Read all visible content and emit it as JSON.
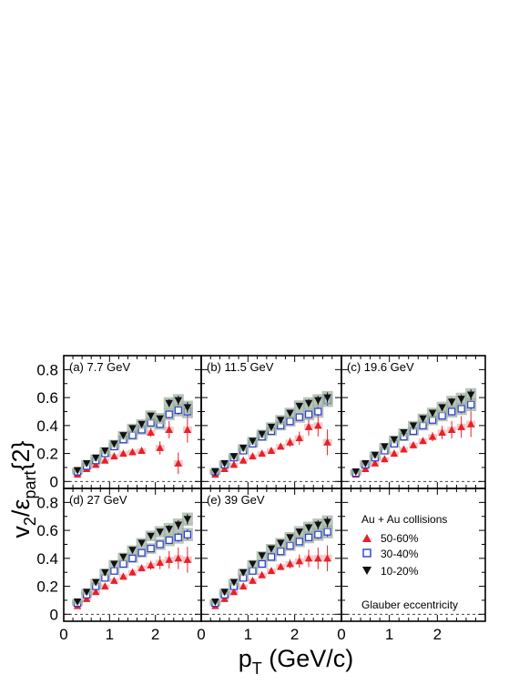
{
  "colors": {
    "50-60%": "#e8202a",
    "30-40%": "#2a3bd0",
    "10-20%": "#111111",
    "syst_band": "#9fb1a3"
  },
  "ylabel": {
    "v": "v",
    "v_sub": "2",
    "slash": "/",
    "eps": "ε",
    "eps_sub": "part",
    "braces": "{2}"
  },
  "xlabel": {
    "p": "p",
    "p_sub": "T",
    "rest": " (GeV/c)"
  },
  "legend": {
    "title": "Au + Au collisions",
    "items": [
      {
        "label": "50-60%",
        "marker": "triangle-up",
        "color_key": "50-60%"
      },
      {
        "label": "30-40%",
        "marker": "open-square",
        "color_key": "30-40%"
      },
      {
        "label": "10-20%",
        "marker": "triangle-down",
        "color_key": "10-20%"
      }
    ],
    "note": "Glauber eccentricity"
  },
  "chart_data": [
    {
      "type": "scatter",
      "label": "(a) 7.7 GeV",
      "xlim": [
        0,
        3.0
      ],
      "ylim": [
        -0.05,
        0.9
      ],
      "yticks": [
        "0",
        "0.2",
        "0.4",
        "0.6",
        "0.8"
      ],
      "xticks": [
        "0",
        "1",
        "2"
      ],
      "series": [
        {
          "name": "10-20%",
          "x": [
            0.3,
            0.5,
            0.7,
            0.9,
            1.1,
            1.3,
            1.5,
            1.7,
            1.9,
            2.1,
            2.3,
            2.5,
            2.7
          ],
          "y": [
            0.08,
            0.13,
            0.17,
            0.22,
            0.27,
            0.33,
            0.38,
            0.41,
            0.47,
            0.45,
            0.56,
            0.58,
            0.53
          ]
        },
        {
          "name": "30-40%",
          "x": [
            0.3,
            0.5,
            0.7,
            0.9,
            1.1,
            1.3,
            1.5,
            1.7,
            1.9,
            2.1,
            2.3,
            2.5,
            2.7
          ],
          "y": [
            0.07,
            0.11,
            0.15,
            0.2,
            0.25,
            0.3,
            0.33,
            0.37,
            0.42,
            0.41,
            0.48,
            0.51,
            0.5
          ]
        },
        {
          "name": "50-60%",
          "x": [
            0.3,
            0.5,
            0.7,
            0.9,
            1.1,
            1.3,
            1.5,
            1.7,
            1.9,
            2.1,
            2.3,
            2.5,
            2.7
          ],
          "y": [
            0.05,
            0.09,
            0.12,
            0.15,
            0.18,
            0.2,
            0.21,
            0.22,
            0.35,
            0.24,
            0.37,
            0.13,
            0.37
          ]
        }
      ]
    },
    {
      "type": "scatter",
      "label": "(b) 11.5 GeV",
      "xlim": [
        0,
        3.0
      ],
      "ylim": [
        -0.05,
        0.9
      ],
      "series": [
        {
          "name": "10-20%",
          "x": [
            0.3,
            0.5,
            0.7,
            0.9,
            1.1,
            1.3,
            1.5,
            1.7,
            1.9,
            2.1,
            2.3,
            2.5,
            2.7
          ],
          "y": [
            0.07,
            0.13,
            0.18,
            0.24,
            0.29,
            0.34,
            0.39,
            0.44,
            0.49,
            0.54,
            0.56,
            0.58,
            0.6
          ]
        },
        {
          "name": "30-40%",
          "x": [
            0.3,
            0.5,
            0.7,
            0.9,
            1.1,
            1.3,
            1.5,
            1.7,
            1.9,
            2.1,
            2.3,
            2.5,
            2.7
          ],
          "y": [
            0.07,
            0.12,
            0.17,
            0.22,
            0.27,
            0.32,
            0.36,
            0.4,
            0.43,
            0.46,
            0.48,
            0.5,
            0.58
          ]
        },
        {
          "name": "50-60%",
          "x": [
            0.3,
            0.5,
            0.7,
            0.9,
            1.1,
            1.3,
            1.5,
            1.7,
            1.9,
            2.1,
            2.3,
            2.5,
            2.7
          ],
          "y": [
            0.05,
            0.09,
            0.12,
            0.15,
            0.18,
            0.2,
            0.22,
            0.25,
            0.28,
            0.31,
            0.39,
            0.4,
            0.28
          ]
        }
      ]
    },
    {
      "type": "scatter",
      "label": "(c) 19.6 GeV",
      "xlim": [
        0,
        3.0
      ],
      "ylim": [
        -0.05,
        0.9
      ],
      "series": [
        {
          "name": "10-20%",
          "x": [
            0.3,
            0.5,
            0.7,
            0.9,
            1.1,
            1.3,
            1.5,
            1.7,
            1.9,
            2.1,
            2.3,
            2.5,
            2.7
          ],
          "y": [
            0.07,
            0.13,
            0.19,
            0.25,
            0.3,
            0.35,
            0.4,
            0.45,
            0.49,
            0.53,
            0.57,
            0.59,
            0.62
          ]
        },
        {
          "name": "30-40%",
          "x": [
            0.3,
            0.5,
            0.7,
            0.9,
            1.1,
            1.3,
            1.5,
            1.7,
            1.9,
            2.1,
            2.3,
            2.5,
            2.7
          ],
          "y": [
            0.06,
            0.12,
            0.17,
            0.22,
            0.27,
            0.32,
            0.36,
            0.4,
            0.44,
            0.47,
            0.5,
            0.52,
            0.55
          ]
        },
        {
          "name": "50-60%",
          "x": [
            0.3,
            0.5,
            0.7,
            0.9,
            1.1,
            1.3,
            1.5,
            1.7,
            1.9,
            2.1,
            2.3,
            2.5,
            2.7
          ],
          "y": [
            0.05,
            0.09,
            0.13,
            0.16,
            0.2,
            0.23,
            0.26,
            0.29,
            0.32,
            0.35,
            0.37,
            0.39,
            0.41
          ]
        }
      ]
    },
    {
      "type": "scatter",
      "label": "(d) 27 GeV",
      "xlim": [
        0,
        3.0
      ],
      "ylim": [
        -0.05,
        0.9
      ],
      "yticks": [
        "0",
        "0.2",
        "0.4",
        "0.6",
        "0.8"
      ],
      "xticks": [
        "0",
        "1",
        "2"
      ],
      "series": [
        {
          "name": "10-20%",
          "x": [
            0.3,
            0.5,
            0.7,
            0.9,
            1.1,
            1.3,
            1.5,
            1.7,
            1.9,
            2.1,
            2.3,
            2.5,
            2.7
          ],
          "y": [
            0.09,
            0.16,
            0.23,
            0.3,
            0.36,
            0.41,
            0.46,
            0.51,
            0.56,
            0.59,
            0.61,
            0.64,
            0.68
          ]
        },
        {
          "name": "30-40%",
          "x": [
            0.3,
            0.5,
            0.7,
            0.9,
            1.1,
            1.3,
            1.5,
            1.7,
            1.9,
            2.1,
            2.3,
            2.5,
            2.7
          ],
          "y": [
            0.08,
            0.14,
            0.2,
            0.26,
            0.31,
            0.36,
            0.4,
            0.44,
            0.47,
            0.5,
            0.53,
            0.55,
            0.57
          ]
        },
        {
          "name": "50-60%",
          "x": [
            0.3,
            0.5,
            0.7,
            0.9,
            1.1,
            1.3,
            1.5,
            1.7,
            1.9,
            2.1,
            2.3,
            2.5,
            2.7
          ],
          "y": [
            0.06,
            0.11,
            0.16,
            0.2,
            0.24,
            0.27,
            0.3,
            0.33,
            0.35,
            0.37,
            0.39,
            0.4,
            0.39
          ]
        }
      ]
    },
    {
      "type": "scatter",
      "label": "(e) 39 GeV",
      "xlim": [
        0,
        3.0
      ],
      "ylim": [
        -0.05,
        0.9
      ],
      "xticks": [
        "0",
        "1",
        "2"
      ],
      "series": [
        {
          "name": "10-20%",
          "x": [
            0.3,
            0.5,
            0.7,
            0.9,
            1.1,
            1.3,
            1.5,
            1.7,
            1.9,
            2.1,
            2.3,
            2.5,
            2.7
          ],
          "y": [
            0.09,
            0.16,
            0.23,
            0.3,
            0.36,
            0.42,
            0.47,
            0.51,
            0.55,
            0.59,
            0.62,
            0.64,
            0.66
          ]
        },
        {
          "name": "30-40%",
          "x": [
            0.3,
            0.5,
            0.7,
            0.9,
            1.1,
            1.3,
            1.5,
            1.7,
            1.9,
            2.1,
            2.3,
            2.5,
            2.7
          ],
          "y": [
            0.08,
            0.14,
            0.2,
            0.26,
            0.31,
            0.36,
            0.41,
            0.45,
            0.49,
            0.52,
            0.55,
            0.57,
            0.59
          ]
        },
        {
          "name": "50-60%",
          "x": [
            0.3,
            0.5,
            0.7,
            0.9,
            1.1,
            1.3,
            1.5,
            1.7,
            1.9,
            2.1,
            2.3,
            2.5,
            2.7
          ],
          "y": [
            0.06,
            0.11,
            0.16,
            0.2,
            0.24,
            0.28,
            0.31,
            0.34,
            0.36,
            0.38,
            0.4,
            0.4,
            0.4
          ]
        }
      ]
    }
  ],
  "extra_xticks": [
    "0",
    "1",
    "2"
  ]
}
